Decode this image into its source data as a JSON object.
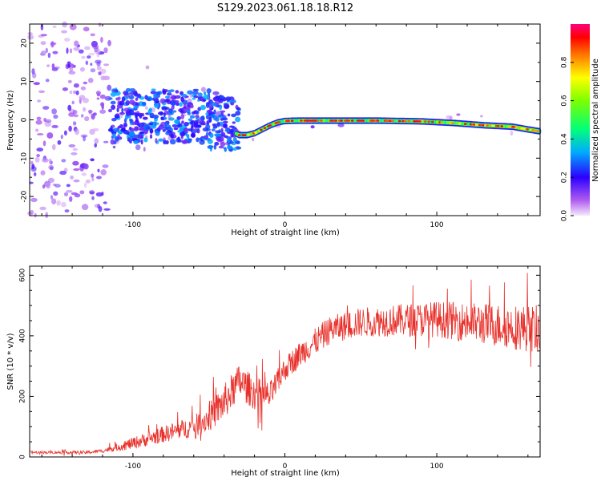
{
  "title": "S129.2023.061.18.18.R12",
  "chart_data": [
    {
      "type": "heatmap",
      "description_key": "spectrogram",
      "xlabel": "Height of straight line (km)",
      "ylabel": "Frequency (Hz)",
      "xlim": [
        -168,
        168
      ],
      "ylim": [
        -25,
        25
      ],
      "xticks": [
        -100,
        0,
        100
      ],
      "yticks": [
        -20,
        -10,
        0,
        10,
        20
      ],
      "colorbar": {
        "label": "Normalized spectral amplitude",
        "range": [
          0,
          1
        ],
        "ticks": [
          0.0,
          0.2,
          0.4,
          0.6,
          0.8
        ]
      },
      "ridge": {
        "x": [
          -168,
          -120,
          -100,
          -80,
          -60,
          -45,
          -35,
          -30,
          -25,
          -20,
          -15,
          -10,
          -5,
          0,
          10,
          30,
          60,
          90,
          110,
          130,
          150,
          160,
          168
        ],
        "y": [
          0,
          0,
          1,
          1,
          0,
          -1,
          -3,
          -4,
          -4,
          -3.5,
          -2.5,
          -1.5,
          -0.7,
          -0.3,
          -0.2,
          -0.2,
          -0.2,
          -0.4,
          -0.8,
          -1.4,
          -1.8,
          -2.5,
          -3
        ],
        "peak_amplitude": 1.0
      }
    },
    {
      "type": "line",
      "xlabel": "Height of straight line (km)",
      "ylabel": "SNR (10 * v/v)",
      "xlim": [
        -168,
        168
      ],
      "ylim": [
        0,
        630
      ],
      "xticks": [
        -100,
        0,
        100
      ],
      "yticks": [
        0,
        200,
        400,
        600
      ],
      "color": "#e8302a",
      "trend": {
        "x": [
          -168,
          -130,
          -120,
          -100,
          -80,
          -60,
          -50,
          -40,
          -30,
          -20,
          -10,
          0,
          10,
          20,
          30,
          50,
          70,
          100,
          130,
          150,
          168
        ],
        "y": [
          15,
          15,
          20,
          45,
          75,
          100,
          130,
          180,
          250,
          210,
          200,
          290,
          340,
          380,
          420,
          445,
          450,
          455,
          440,
          430,
          420
        ]
      },
      "noise_amplitude": {
        "x": [
          -168,
          -120,
          -100,
          -60,
          -40,
          -20,
          0,
          20,
          60,
          100,
          168
        ],
        "y": [
          4,
          6,
          20,
          35,
          60,
          55,
          40,
          45,
          50,
          60,
          80
        ]
      }
    }
  ]
}
